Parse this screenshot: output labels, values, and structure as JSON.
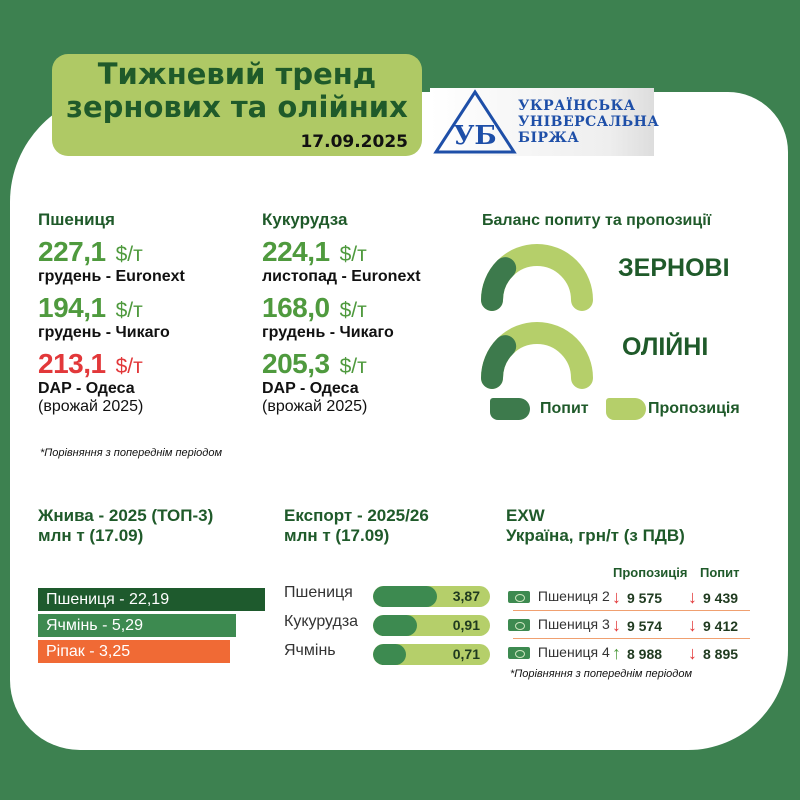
{
  "header": {
    "title_line1": "Тижневий тренд",
    "title_line2": "зернових та олійних",
    "date": "17.09.2025"
  },
  "logo": {
    "text": [
      "УКРАЇНСЬКА",
      "УНІВЕРСАЛЬНА",
      "БІРЖА"
    ],
    "mark": "УБ"
  },
  "wheat": {
    "title": "Пшениця",
    "prices": [
      {
        "value": "227,1",
        "unit": "$/т",
        "label": "грудень - Euronext",
        "trend": "up"
      },
      {
        "value": "194,1",
        "unit": "$/т",
        "label": "грудень - Чикаго",
        "trend": "up"
      },
      {
        "value": "213,1",
        "unit": "$/т",
        "label": "DAP - Одеса",
        "sub": "(врожай 2025)",
        "trend": "down"
      }
    ]
  },
  "corn": {
    "title": "Кукурудза",
    "prices": [
      {
        "value": "224,1",
        "unit": "$/т",
        "label": "листопад - Euronext",
        "trend": "up"
      },
      {
        "value": "168,0",
        "unit": "$/т",
        "label": "грудень - Чикаго",
        "trend": "up"
      },
      {
        "value": "205,3",
        "unit": "$/т",
        "label": "DAP - Одеса",
        "sub": "(врожай 2025)",
        "trend": "up"
      }
    ]
  },
  "note": "*Порівняння з попереднім періодом",
  "balance": {
    "title": "Баланс попиту та пропозиції",
    "gauges": [
      {
        "label": "ЗЕРНОВІ",
        "demand_share": 0.25
      },
      {
        "label": "ОЛІЙНІ",
        "demand_share": 0.25
      }
    ],
    "legend": {
      "demand": "Попит",
      "supply": "Пропозиція"
    },
    "colors": {
      "demand": "#3d7a4c",
      "supply": "#b5cf6a"
    }
  },
  "harvest": {
    "title": "Жнива - 2025 (ТОП-3)",
    "subtitle": "млн т (17.09)",
    "items": [
      {
        "label": "Пшениця - 22,19",
        "value": 22.19,
        "color": "#1e5a2d"
      },
      {
        "label": "Ячмінь - 5,29",
        "value": 5.29,
        "color": "#3d8a50"
      },
      {
        "label": "Ріпак - 3,25",
        "value": 3.25,
        "color": "#f06a35"
      }
    ]
  },
  "export": {
    "title": "Експорт - 2025/26",
    "subtitle": "млн т (17.09)",
    "items": [
      {
        "label": "Пшениця",
        "value": "3,87",
        "fill": 0.55
      },
      {
        "label": "Кукурудза",
        "value": "0,91",
        "fill": 0.38
      },
      {
        "label": "Ячмінь",
        "value": "0,71",
        "fill": 0.28
      }
    ]
  },
  "exw": {
    "title": "EXW",
    "subtitle": "Україна, грн/т (з ПДВ)",
    "col_supply": "Пропозиція",
    "col_demand": "Попит",
    "rows": [
      {
        "label": "Пшениця 2",
        "supply": "9 575",
        "supply_trend": "down",
        "demand": "9 439",
        "demand_trend": "down"
      },
      {
        "label": "Пшениця 3",
        "supply": "9 574",
        "supply_trend": "down",
        "demand": "9 412",
        "demand_trend": "down"
      },
      {
        "label": "Пшениця 4",
        "supply": "8 988",
        "supply_trend": "up",
        "demand": "8 895",
        "demand_trend": "down"
      }
    ],
    "note": "*Порівняння з попереднім періодом"
  }
}
